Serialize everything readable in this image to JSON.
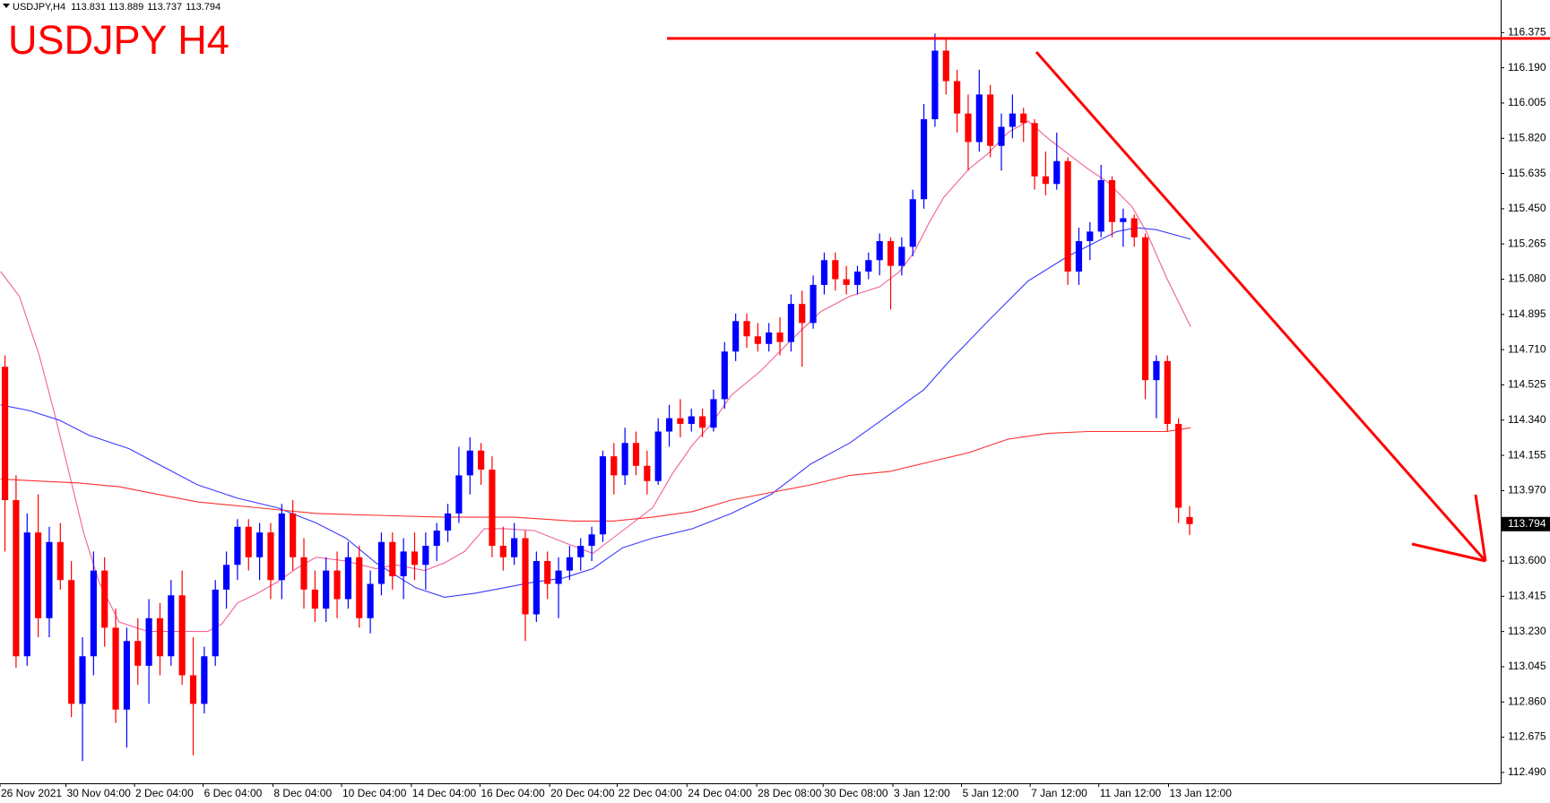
{
  "chart_data": {
    "type": "candlestick",
    "title": "USDJPY H4",
    "symbol": "USDJPY,H4",
    "up_color": "#0000ff",
    "down_color": "#ff0000",
    "open": [
      114.62,
      113.92,
      113.1,
      113.75,
      113.3,
      113.7,
      113.5,
      112.85,
      113.1,
      113.55,
      113.25,
      112.82,
      113.18,
      113.05,
      113.3,
      113.1,
      113.42,
      113.0,
      112.85,
      113.1,
      113.45,
      113.58,
      113.78,
      113.62,
      113.75,
      113.5,
      113.85,
      113.62,
      113.45,
      113.35,
      113.55,
      113.4,
      113.62,
      113.3,
      113.48,
      113.7,
      113.52,
      113.65,
      113.58,
      113.68,
      113.76,
      113.85,
      114.05,
      114.18,
      114.08,
      113.68,
      113.62,
      113.72,
      113.32,
      113.6,
      113.48,
      113.55,
      113.62,
      113.68,
      113.74,
      114.15,
      114.05,
      114.22,
      114.1,
      114.02,
      114.28,
      114.35,
      114.32,
      114.36,
      114.3,
      114.45,
      114.7,
      114.86,
      114.78,
      114.74,
      114.8,
      114.75,
      114.95,
      114.85,
      115.05,
      115.18,
      115.08,
      115.05,
      115.12,
      115.18,
      115.28,
      115.15,
      115.25,
      115.5,
      115.92,
      116.28,
      116.12,
      115.95,
      115.8,
      116.05,
      115.78,
      115.88,
      115.95,
      115.9,
      115.62,
      115.58,
      115.7,
      115.12,
      115.28,
      115.33,
      115.6,
      115.38,
      115.4,
      115.3,
      114.55,
      114.65,
      114.32,
      113.831
    ],
    "high": [
      114.68,
      114.05,
      113.85,
      113.95,
      113.78,
      113.8,
      113.6,
      113.2,
      113.65,
      113.62,
      113.35,
      113.25,
      113.3,
      113.4,
      113.38,
      113.5,
      113.55,
      113.2,
      113.15,
      113.5,
      113.65,
      113.82,
      113.82,
      113.8,
      113.8,
      113.9,
      113.92,
      113.72,
      113.55,
      113.62,
      113.65,
      113.7,
      113.68,
      113.55,
      113.75,
      113.75,
      113.72,
      113.75,
      113.75,
      113.8,
      113.9,
      114.2,
      114.25,
      114.22,
      114.15,
      113.78,
      113.8,
      113.76,
      113.65,
      113.65,
      113.62,
      113.68,
      113.72,
      113.78,
      114.18,
      114.22,
      114.3,
      114.28,
      114.18,
      114.35,
      114.42,
      114.45,
      114.4,
      114.4,
      114.5,
      114.75,
      114.9,
      114.9,
      114.85,
      114.85,
      114.88,
      115.0,
      115.02,
      115.1,
      115.22,
      115.22,
      115.15,
      115.15,
      115.22,
      115.32,
      115.3,
      115.3,
      115.55,
      116.0,
      116.37,
      116.35,
      116.18,
      116.05,
      116.18,
      116.1,
      115.95,
      116.05,
      115.98,
      115.92,
      115.75,
      115.85,
      115.72,
      115.35,
      115.38,
      115.68,
      115.62,
      115.45,
      115.42,
      115.32,
      114.68,
      114.68,
      114.35,
      113.889
    ],
    "low": [
      113.65,
      113.04,
      113.05,
      113.2,
      113.2,
      113.45,
      112.78,
      112.55,
      113.0,
      113.15,
      112.75,
      112.62,
      112.95,
      112.85,
      113.0,
      113.05,
      112.95,
      112.58,
      112.8,
      113.05,
      113.35,
      113.5,
      113.55,
      113.5,
      113.4,
      113.4,
      113.55,
      113.35,
      113.28,
      113.28,
      113.3,
      113.35,
      113.25,
      113.22,
      113.42,
      113.45,
      113.4,
      113.5,
      113.45,
      113.6,
      113.7,
      113.8,
      113.95,
      114.0,
      113.62,
      113.55,
      113.58,
      113.18,
      113.28,
      113.4,
      113.3,
      113.5,
      113.55,
      113.6,
      113.7,
      113.95,
      114.0,
      114.05,
      113.95,
      114.0,
      114.2,
      114.25,
      114.28,
      114.25,
      114.28,
      114.4,
      114.65,
      114.72,
      114.7,
      114.7,
      114.68,
      114.7,
      114.62,
      114.82,
      115.0,
      115.02,
      115.0,
      115.0,
      115.08,
      115.1,
      114.92,
      115.1,
      115.2,
      115.45,
      115.88,
      116.05,
      115.85,
      115.65,
      115.75,
      115.72,
      115.65,
      115.82,
      115.8,
      115.55,
      115.52,
      115.55,
      115.05,
      115.05,
      115.18,
      115.3,
      115.3,
      115.25,
      115.25,
      114.45,
      114.35,
      114.28,
      113.8,
      113.737
    ],
    "close": [
      113.92,
      113.1,
      113.75,
      113.3,
      113.7,
      113.5,
      112.85,
      113.1,
      113.55,
      113.25,
      112.82,
      113.18,
      113.05,
      113.3,
      113.1,
      113.42,
      113.0,
      112.85,
      113.1,
      113.45,
      113.58,
      113.78,
      113.62,
      113.75,
      113.5,
      113.85,
      113.62,
      113.45,
      113.35,
      113.55,
      113.4,
      113.62,
      113.3,
      113.48,
      113.7,
      113.52,
      113.65,
      113.58,
      113.68,
      113.76,
      113.85,
      114.05,
      114.18,
      114.08,
      113.68,
      113.62,
      113.72,
      113.32,
      113.6,
      113.48,
      113.55,
      113.62,
      113.68,
      113.74,
      114.15,
      114.05,
      114.22,
      114.1,
      114.02,
      114.28,
      114.35,
      114.32,
      114.36,
      114.3,
      114.45,
      114.7,
      114.86,
      114.78,
      114.74,
      114.8,
      114.75,
      114.95,
      114.85,
      115.05,
      115.18,
      115.08,
      115.05,
      115.12,
      115.18,
      115.28,
      115.15,
      115.25,
      115.5,
      115.92,
      116.28,
      116.12,
      115.95,
      115.8,
      116.05,
      115.78,
      115.88,
      115.95,
      115.9,
      115.62,
      115.58,
      115.7,
      115.12,
      115.28,
      115.33,
      115.6,
      115.38,
      115.4,
      115.3,
      114.55,
      114.65,
      114.32,
      113.88,
      113.794
    ],
    "ma_lines": [
      {
        "color": "#f0609a",
        "x": [
          -0.4,
          1.3,
          3.1,
          4.5,
          5.8,
          7.1,
          8.5,
          10.3,
          12.9,
          15.6,
          18.3,
          19.6,
          21.0,
          22.8,
          24.6,
          26.3,
          28.1,
          30.8,
          33.5,
          35.3,
          37.9,
          39.7,
          41.5,
          43.3,
          45.1,
          47.8,
          50.4,
          53.1,
          54.9,
          56.7,
          58.5,
          60.3,
          62.1,
          63.8,
          65.6,
          68.3,
          71.0,
          73.7,
          76.3,
          79.0,
          80.8,
          82.1,
          83.5,
          84.8,
          87.1,
          88.8,
          90.6,
          92.4,
          94.2,
          96.0,
          97.8,
          99.6,
          101.8,
          103.1,
          104.9,
          107.1
        ],
        "values": [
          115.12,
          114.99,
          114.68,
          114.37,
          114.06,
          113.75,
          113.49,
          113.28,
          113.23,
          113.23,
          113.23,
          113.27,
          113.38,
          113.43,
          113.49,
          113.56,
          113.62,
          113.6,
          113.56,
          113.58,
          113.55,
          113.59,
          113.65,
          113.77,
          113.77,
          113.76,
          113.7,
          113.64,
          113.72,
          113.8,
          113.88,
          114.06,
          114.21,
          114.32,
          114.47,
          114.6,
          114.76,
          114.91,
          114.99,
          115.04,
          115.12,
          115.22,
          115.38,
          115.51,
          115.66,
          115.74,
          115.85,
          115.91,
          115.82,
          115.74,
          115.66,
          115.59,
          115.46,
          115.33,
          115.09,
          114.83
        ]
      },
      {
        "color": "#3a3aff",
        "x": [
          -0.4,
          2.2,
          4.9,
          7.6,
          11.2,
          13.8,
          17.4,
          21.0,
          24.6,
          28.1,
          30.8,
          33.5,
          37.1,
          39.7,
          42.4,
          45.1,
          47.8,
          50.4,
          53.1,
          55.8,
          58.5,
          62.1,
          65.6,
          69.2,
          72.8,
          76.3,
          79.9,
          83.0,
          85.3,
          88.8,
          92.4,
          96.0,
          98.7,
          100.4,
          102.2,
          104.0,
          107.1
        ],
        "values": [
          114.42,
          114.39,
          114.34,
          114.26,
          114.19,
          114.11,
          114.0,
          113.93,
          113.88,
          113.8,
          113.72,
          113.59,
          113.46,
          113.41,
          113.43,
          113.46,
          113.49,
          113.51,
          113.56,
          113.67,
          113.72,
          113.77,
          113.85,
          113.95,
          114.11,
          114.22,
          114.37,
          114.5,
          114.65,
          114.86,
          115.07,
          115.2,
          115.28,
          115.33,
          115.35,
          115.34,
          115.29
        ]
      },
      {
        "color": "#ff3030",
        "x": [
          -0.4,
          3.1,
          6.7,
          10.3,
          13.8,
          17.4,
          22.8,
          28.1,
          33.5,
          39.7,
          46.0,
          51.3,
          54.9,
          58.5,
          62.1,
          65.6,
          69.2,
          72.8,
          76.3,
          79.9,
          83.5,
          87.1,
          90.6,
          94.2,
          97.8,
          101.3,
          104.9,
          107.1
        ],
        "values": [
          114.03,
          114.02,
          114.01,
          113.99,
          113.95,
          113.91,
          113.88,
          113.85,
          113.84,
          113.83,
          113.83,
          113.81,
          113.81,
          113.83,
          113.86,
          113.92,
          113.96,
          114.0,
          114.05,
          114.07,
          114.12,
          114.17,
          114.24,
          114.27,
          114.28,
          114.28,
          114.28,
          114.3
        ]
      }
    ],
    "xlim": [
      -0.45,
      135.1
    ],
    "ylim": [
      112.433,
      116.546
    ],
    "xticks": [
      {
        "value": -0.45,
        "label": "26 Nov 2021"
      },
      {
        "value": 5.5,
        "label": "30 Nov 04:00"
      },
      {
        "value": 11.7,
        "label": "2 Dec 04:00"
      },
      {
        "value": 17.9,
        "label": "6 Dec 04:00"
      },
      {
        "value": 24.2,
        "label": "8 Dec 04:00"
      },
      {
        "value": 30.4,
        "label": "10 Dec 04:00"
      },
      {
        "value": 36.7,
        "label": "14 Dec 04:00"
      },
      {
        "value": 42.9,
        "label": "16 Dec 04:00"
      },
      {
        "value": 49.2,
        "label": "20 Dec 04:00"
      },
      {
        "value": 55.3,
        "label": "22 Dec 04:00"
      },
      {
        "value": 61.6,
        "label": "24 Dec 04:00"
      },
      {
        "value": 67.9,
        "label": "28 Dec 08:00"
      },
      {
        "value": 73.9,
        "label": "30 Dec 08:00"
      },
      {
        "value": 80.2,
        "label": "3 Jan 12:00"
      },
      {
        "value": 86.4,
        "label": "5 Jan 12:00"
      },
      {
        "value": 92.6,
        "label": "7 Jan 12:00"
      },
      {
        "value": 98.8,
        "label": "11 Jan 12:00"
      },
      {
        "value": 105.1,
        "label": "13 Jan 12:00"
      }
    ],
    "yticks": [
      116.375,
      {
        "value": 116.19,
        "label": "116.190"
      },
      116.005,
      {
        "value": 115.82,
        "label": "115.820"
      },
      115.635,
      {
        "value": 115.45,
        "label": "115.450"
      },
      115.265,
      {
        "value": 115.08,
        "label": "115.080"
      },
      114.895,
      {
        "value": 114.71,
        "label": "114.710"
      },
      114.525,
      {
        "value": 114.34,
        "label": "114.340"
      },
      114.155,
      {
        "value": 113.97,
        "label": "113.970"
      },
      {
        "value": 113.6,
        "label": "113.600"
      },
      113.415,
      {
        "value": 113.23,
        "label": "113.230"
      },
      113.045,
      {
        "value": 112.86,
        "label": "112.860"
      },
      112.675,
      {
        "value": 112.49,
        "label": "112.490"
      }
    ],
    "grid": false,
    "last_price": 113.794,
    "resistance": 116.344,
    "annotation_color": "#ff0000"
  }
}
